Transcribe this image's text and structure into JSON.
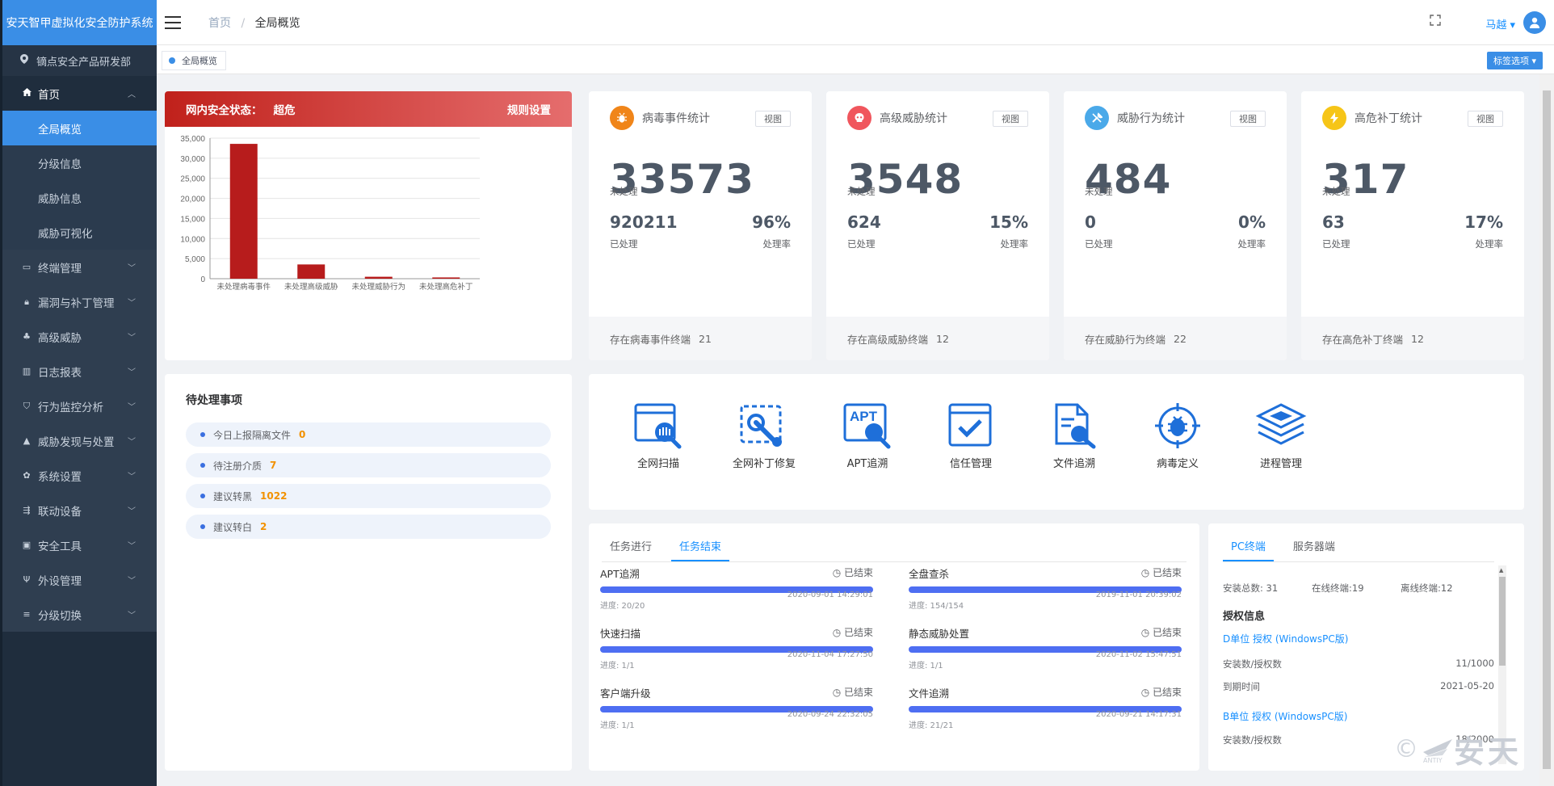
{
  "sidebar": {
    "brand": "安天智甲虚拟化安全防护系统",
    "org": "镝点安全产品研发部",
    "home": "首页",
    "home_sub": [
      "全局概览",
      "分级信息",
      "威胁信息",
      "威胁可视化"
    ],
    "items": [
      "终端管理",
      "漏洞与补丁管理",
      "高级威胁",
      "日志报表",
      "行为监控分析",
      "威胁发现与处置",
      "系统设置",
      "联动设备",
      "安全工具",
      "外设管理",
      "分级切换"
    ]
  },
  "header": {
    "crumb_home": "首页",
    "crumb_sep": "/",
    "crumb_current": "全局概览",
    "user": "马越 ▾"
  },
  "tagsbar": {
    "tag": "全局概览",
    "options": "标签选项 ▾"
  },
  "status": {
    "label": "网内安全状态：",
    "level": "超危",
    "rule_link": "规则设置"
  },
  "chart_data": {
    "type": "bar",
    "categories": [
      "未处理病毒事件",
      "未处理高级威胁",
      "未处理威胁行为",
      "未处理高危补丁"
    ],
    "values": [
      33573,
      3548,
      484,
      317
    ],
    "ylim": [
      0,
      35000
    ],
    "yticks": [
      "0",
      "5,000",
      "10,000",
      "15,000",
      "20,000",
      "25,000",
      "30,000",
      "35,000"
    ],
    "color": "#b71c1c",
    "grid": true,
    "title": "",
    "xlabel": "",
    "ylabel": ""
  },
  "stats": [
    {
      "title": "病毒事件统计",
      "icon": "bug-icon",
      "color": "#f08519",
      "view": "视图",
      "unhandled": "33573",
      "unhandled_label": "未处理",
      "handled": "920211",
      "handled_label": "已处理",
      "rate": "96%",
      "rate_label": "处理率",
      "footer": "存在病毒事件终端",
      "footer_count": "21"
    },
    {
      "title": "高级威胁统计",
      "icon": "skull-icon",
      "color": "#f0565d",
      "view": "视图",
      "unhandled": "3548",
      "unhandled_label": "未处理",
      "handled": "624",
      "handled_label": "已处理",
      "rate": "15%",
      "rate_label": "处理率",
      "footer": "存在高级威胁终端",
      "footer_count": "12"
    },
    {
      "title": "威胁行为统计",
      "icon": "tools-icon",
      "color": "#4aa9e9",
      "view": "视图",
      "unhandled": "484",
      "unhandled_label": "未处理",
      "handled": "0",
      "handled_label": "已处理",
      "rate": "0%",
      "rate_label": "处理率",
      "footer": "存在威胁行为终端",
      "footer_count": "22"
    },
    {
      "title": "高危补丁统计",
      "icon": "lightning-icon",
      "color": "#f6c518",
      "view": "视图",
      "unhandled": "317",
      "unhandled_label": "未处理",
      "handled": "63",
      "handled_label": "已处理",
      "rate": "17%",
      "rate_label": "处理率",
      "footer": "存在高危补丁终端",
      "footer_count": "12"
    }
  ],
  "pending": {
    "title": "待处理事项",
    "items": [
      {
        "label": "今日上报隔离文件",
        "count": "0"
      },
      {
        "label": "待注册介质",
        "count": "7"
      },
      {
        "label": "建议转黑",
        "count": "1022"
      },
      {
        "label": "建议转白",
        "count": "2"
      }
    ]
  },
  "tools": [
    {
      "label": "全网扫描",
      "icon": "scan-icon"
    },
    {
      "label": "全网补丁修复",
      "icon": "patch-repair-icon"
    },
    {
      "label": "APT追溯",
      "icon": "apt-trace-icon",
      "icon_text": "APT"
    },
    {
      "label": "信任管理",
      "icon": "trust-icon"
    },
    {
      "label": "文件追溯",
      "icon": "file-trace-icon"
    },
    {
      "label": "病毒定义",
      "icon": "virus-definition-icon"
    },
    {
      "label": "进程管理",
      "icon": "process-icon"
    }
  ],
  "tasks": {
    "tabs": [
      "任务进行",
      "任务结束"
    ],
    "active_tab": 1,
    "items": [
      {
        "name": "APT追溯",
        "status": "◷ 已结束",
        "progress": "进度: 20/20",
        "time": "2020-09-01 14:29:01",
        "ratio": 1.0
      },
      {
        "name": "全盘查杀",
        "status": "◷ 已结束",
        "progress": "进度: 154/154",
        "time": "2019-11-01 20:39:02",
        "ratio": 1.0
      },
      {
        "name": "快速扫描",
        "status": "◷ 已结束",
        "progress": "进度: 1/1",
        "time": "2020-11-04 17:27:50",
        "ratio": 1.0
      },
      {
        "name": "静态威胁处置",
        "status": "◷ 已结束",
        "progress": "进度: 1/1",
        "time": "2020-11-02 15:47:51",
        "ratio": 1.0
      },
      {
        "name": "客户端升级",
        "status": "◷ 已结束",
        "progress": "进度: 1/1",
        "time": "2020-09-24 22:32:05",
        "ratio": 1.0
      },
      {
        "name": "文件追溯",
        "status": "◷ 已结束",
        "progress": "进度: 21/21",
        "time": "2020-09-21 14:17:31",
        "ratio": 1.0
      }
    ]
  },
  "license": {
    "tabs": [
      "PC终端",
      "服务器端"
    ],
    "installed": "安装总数: 31",
    "online": "在线终端:19",
    "offline": "离线终端:12",
    "heading": "授权信息",
    "units": [
      {
        "name": "D单位 授权 (WindowsPC版)",
        "count_label": "安装数/授权数",
        "count": "11/1000",
        "expiry_label": "到期时间",
        "expiry": "2021-05-20"
      },
      {
        "name": "B单位 授权 (WindowsPC版)",
        "count_label": "安装数/授权数",
        "count": "18/2000"
      }
    ]
  },
  "watermark": {
    "symbol": "©",
    "text": "安天",
    "sub": "ANTIY"
  }
}
